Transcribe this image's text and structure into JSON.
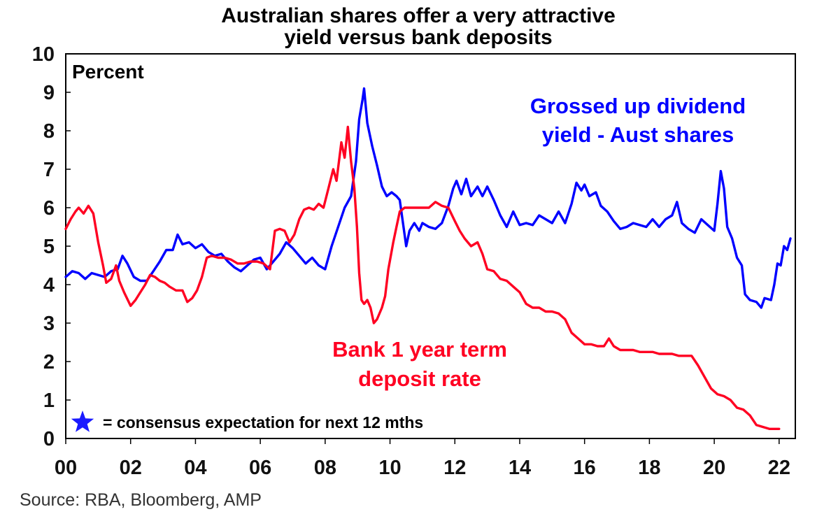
{
  "chart_data": {
    "type": "line",
    "title_lines": [
      "Australian shares offer a very attractive",
      "yield versus bank deposits"
    ],
    "unit_label": "Percent",
    "xlim": [
      2000,
      2022.5
    ],
    "ylim": [
      0,
      10
    ],
    "x_ticks": [
      2000,
      2002,
      2004,
      2006,
      2008,
      2010,
      2012,
      2014,
      2016,
      2018,
      2020,
      2022
    ],
    "x_tick_labels": [
      "00",
      "02",
      "04",
      "06",
      "08",
      "10",
      "12",
      "14",
      "16",
      "18",
      "20",
      "22"
    ],
    "y_ticks": [
      0,
      1,
      2,
      3,
      4,
      5,
      6,
      7,
      8,
      9,
      10
    ],
    "y_tick_labels": [
      "0",
      "1",
      "2",
      "3",
      "4",
      "5",
      "6",
      "7",
      "8",
      "9",
      "10"
    ],
    "grid": false,
    "series": [
      {
        "name": "Grossed up dividend yield - Aust shares",
        "color": "#0000ff",
        "points": [
          [
            2000.0,
            4.2
          ],
          [
            2000.2,
            4.35
          ],
          [
            2000.4,
            4.3
          ],
          [
            2000.6,
            4.15
          ],
          [
            2000.8,
            4.3
          ],
          [
            2001.0,
            4.25
          ],
          [
            2001.2,
            4.2
          ],
          [
            2001.4,
            4.35
          ],
          [
            2001.6,
            4.4
          ],
          [
            2001.75,
            4.75
          ],
          [
            2001.9,
            4.55
          ],
          [
            2002.1,
            4.2
          ],
          [
            2002.3,
            4.1
          ],
          [
            2002.5,
            4.1
          ],
          [
            2002.7,
            4.35
          ],
          [
            2002.9,
            4.6
          ],
          [
            2003.1,
            4.9
          ],
          [
            2003.3,
            4.9
          ],
          [
            2003.45,
            5.3
          ],
          [
            2003.6,
            5.05
          ],
          [
            2003.8,
            5.1
          ],
          [
            2004.0,
            4.95
          ],
          [
            2004.2,
            5.05
          ],
          [
            2004.4,
            4.85
          ],
          [
            2004.6,
            4.75
          ],
          [
            2004.8,
            4.8
          ],
          [
            2005.0,
            4.6
          ],
          [
            2005.2,
            4.45
          ],
          [
            2005.4,
            4.35
          ],
          [
            2005.6,
            4.5
          ],
          [
            2005.8,
            4.65
          ],
          [
            2006.0,
            4.7
          ],
          [
            2006.2,
            4.4
          ],
          [
            2006.4,
            4.6
          ],
          [
            2006.6,
            4.8
          ],
          [
            2006.8,
            5.1
          ],
          [
            2007.0,
            4.95
          ],
          [
            2007.2,
            4.75
          ],
          [
            2007.4,
            4.55
          ],
          [
            2007.6,
            4.7
          ],
          [
            2007.8,
            4.5
          ],
          [
            2008.0,
            4.4
          ],
          [
            2008.2,
            5.0
          ],
          [
            2008.4,
            5.5
          ],
          [
            2008.6,
            6.0
          ],
          [
            2008.8,
            6.3
          ],
          [
            2008.95,
            7.2
          ],
          [
            2009.05,
            8.3
          ],
          [
            2009.15,
            8.8
          ],
          [
            2009.2,
            9.1
          ],
          [
            2009.3,
            8.2
          ],
          [
            2009.45,
            7.6
          ],
          [
            2009.6,
            7.1
          ],
          [
            2009.75,
            6.55
          ],
          [
            2009.9,
            6.3
          ],
          [
            2010.05,
            6.4
          ],
          [
            2010.2,
            6.3
          ],
          [
            2010.3,
            6.2
          ],
          [
            2010.4,
            5.6
          ],
          [
            2010.5,
            5.0
          ],
          [
            2010.6,
            5.4
          ],
          [
            2010.75,
            5.6
          ],
          [
            2010.9,
            5.4
          ],
          [
            2011.0,
            5.6
          ],
          [
            2011.2,
            5.5
          ],
          [
            2011.4,
            5.45
          ],
          [
            2011.6,
            5.6
          ],
          [
            2011.8,
            6.05
          ],
          [
            2011.95,
            6.5
          ],
          [
            2012.05,
            6.7
          ],
          [
            2012.2,
            6.35
          ],
          [
            2012.35,
            6.75
          ],
          [
            2012.5,
            6.3
          ],
          [
            2012.7,
            6.55
          ],
          [
            2012.85,
            6.3
          ],
          [
            2013.0,
            6.55
          ],
          [
            2013.2,
            6.2
          ],
          [
            2013.4,
            5.8
          ],
          [
            2013.6,
            5.5
          ],
          [
            2013.8,
            5.9
          ],
          [
            2014.0,
            5.55
          ],
          [
            2014.2,
            5.6
          ],
          [
            2014.4,
            5.55
          ],
          [
            2014.6,
            5.8
          ],
          [
            2014.8,
            5.7
          ],
          [
            2015.0,
            5.6
          ],
          [
            2015.2,
            5.9
          ],
          [
            2015.4,
            5.6
          ],
          [
            2015.6,
            6.1
          ],
          [
            2015.75,
            6.65
          ],
          [
            2015.9,
            6.45
          ],
          [
            2016.0,
            6.6
          ],
          [
            2016.15,
            6.3
          ],
          [
            2016.35,
            6.4
          ],
          [
            2016.5,
            6.05
          ],
          [
            2016.7,
            5.9
          ],
          [
            2016.9,
            5.65
          ],
          [
            2017.1,
            5.45
          ],
          [
            2017.3,
            5.5
          ],
          [
            2017.5,
            5.6
          ],
          [
            2017.7,
            5.55
          ],
          [
            2017.9,
            5.5
          ],
          [
            2018.1,
            5.7
          ],
          [
            2018.3,
            5.5
          ],
          [
            2018.5,
            5.7
          ],
          [
            2018.7,
            5.8
          ],
          [
            2018.85,
            6.15
          ],
          [
            2019.0,
            5.6
          ],
          [
            2019.2,
            5.45
          ],
          [
            2019.4,
            5.35
          ],
          [
            2019.6,
            5.7
          ],
          [
            2019.8,
            5.55
          ],
          [
            2020.0,
            5.4
          ],
          [
            2020.1,
            6.1
          ],
          [
            2020.2,
            6.95
          ],
          [
            2020.3,
            6.5
          ],
          [
            2020.4,
            5.5
          ],
          [
            2020.55,
            5.2
          ],
          [
            2020.7,
            4.7
          ],
          [
            2020.85,
            4.5
          ],
          [
            2020.95,
            3.75
          ],
          [
            2021.1,
            3.6
          ],
          [
            2021.3,
            3.55
          ],
          [
            2021.45,
            3.4
          ],
          [
            2021.55,
            3.65
          ],
          [
            2021.75,
            3.6
          ],
          [
            2021.85,
            4.0
          ],
          [
            2021.95,
            4.55
          ],
          [
            2022.05,
            4.5
          ],
          [
            2022.15,
            5.0
          ],
          [
            2022.25,
            4.9
          ],
          [
            2022.35,
            5.2
          ]
        ]
      },
      {
        "name": "Bank 1 year term deposit rate",
        "color": "#ff0022",
        "points": [
          [
            2000.0,
            5.45
          ],
          [
            2000.15,
            5.7
          ],
          [
            2000.3,
            5.9
          ],
          [
            2000.4,
            6.0
          ],
          [
            2000.55,
            5.85
          ],
          [
            2000.7,
            6.05
          ],
          [
            2000.85,
            5.85
          ],
          [
            2001.0,
            5.1
          ],
          [
            2001.15,
            4.5
          ],
          [
            2001.25,
            4.05
          ],
          [
            2001.4,
            4.15
          ],
          [
            2001.55,
            4.5
          ],
          [
            2001.65,
            4.1
          ],
          [
            2001.8,
            3.8
          ],
          [
            2002.0,
            3.45
          ],
          [
            2002.15,
            3.6
          ],
          [
            2002.3,
            3.8
          ],
          [
            2002.45,
            4.0
          ],
          [
            2002.6,
            4.25
          ],
          [
            2002.75,
            4.2
          ],
          [
            2002.9,
            4.1
          ],
          [
            2003.05,
            4.05
          ],
          [
            2003.2,
            3.95
          ],
          [
            2003.4,
            3.85
          ],
          [
            2003.6,
            3.85
          ],
          [
            2003.75,
            3.55
          ],
          [
            2003.9,
            3.65
          ],
          [
            2004.05,
            3.85
          ],
          [
            2004.2,
            4.2
          ],
          [
            2004.35,
            4.7
          ],
          [
            2004.5,
            4.75
          ],
          [
            2004.7,
            4.7
          ],
          [
            2004.9,
            4.7
          ],
          [
            2005.1,
            4.65
          ],
          [
            2005.3,
            4.55
          ],
          [
            2005.5,
            4.55
          ],
          [
            2005.7,
            4.6
          ],
          [
            2005.9,
            4.6
          ],
          [
            2006.1,
            4.55
          ],
          [
            2006.3,
            4.4
          ],
          [
            2006.45,
            5.4
          ],
          [
            2006.6,
            5.45
          ],
          [
            2006.75,
            5.4
          ],
          [
            2006.9,
            5.1
          ],
          [
            2007.05,
            5.3
          ],
          [
            2007.2,
            5.7
          ],
          [
            2007.35,
            5.95
          ],
          [
            2007.5,
            6.0
          ],
          [
            2007.65,
            5.95
          ],
          [
            2007.8,
            6.1
          ],
          [
            2007.95,
            6.0
          ],
          [
            2008.1,
            6.5
          ],
          [
            2008.25,
            7.0
          ],
          [
            2008.35,
            6.7
          ],
          [
            2008.5,
            7.7
          ],
          [
            2008.6,
            7.3
          ],
          [
            2008.7,
            8.1
          ],
          [
            2008.8,
            7.2
          ],
          [
            2008.9,
            6.5
          ],
          [
            2008.98,
            5.5
          ],
          [
            2009.05,
            4.3
          ],
          [
            2009.12,
            3.6
          ],
          [
            2009.2,
            3.5
          ],
          [
            2009.3,
            3.6
          ],
          [
            2009.4,
            3.4
          ],
          [
            2009.5,
            3.0
          ],
          [
            2009.6,
            3.1
          ],
          [
            2009.75,
            3.4
          ],
          [
            2009.85,
            3.7
          ],
          [
            2009.95,
            4.4
          ],
          [
            2010.1,
            5.1
          ],
          [
            2010.2,
            5.5
          ],
          [
            2010.3,
            5.9
          ],
          [
            2010.45,
            6.0
          ],
          [
            2010.6,
            6.0
          ],
          [
            2010.8,
            6.0
          ],
          [
            2011.0,
            6.0
          ],
          [
            2011.2,
            6.0
          ],
          [
            2011.4,
            6.15
          ],
          [
            2011.6,
            6.05
          ],
          [
            2011.8,
            6.0
          ],
          [
            2012.0,
            5.65
          ],
          [
            2012.15,
            5.4
          ],
          [
            2012.3,
            5.2
          ],
          [
            2012.5,
            5.0
          ],
          [
            2012.7,
            5.1
          ],
          [
            2012.85,
            4.8
          ],
          [
            2013.0,
            4.4
          ],
          [
            2013.2,
            4.35
          ],
          [
            2013.4,
            4.15
          ],
          [
            2013.6,
            4.1
          ],
          [
            2013.8,
            3.95
          ],
          [
            2014.0,
            3.8
          ],
          [
            2014.2,
            3.5
          ],
          [
            2014.4,
            3.4
          ],
          [
            2014.6,
            3.4
          ],
          [
            2014.8,
            3.3
          ],
          [
            2015.0,
            3.3
          ],
          [
            2015.2,
            3.25
          ],
          [
            2015.4,
            3.1
          ],
          [
            2015.6,
            2.75
          ],
          [
            2015.8,
            2.6
          ],
          [
            2016.0,
            2.45
          ],
          [
            2016.2,
            2.45
          ],
          [
            2016.4,
            2.4
          ],
          [
            2016.6,
            2.4
          ],
          [
            2016.75,
            2.6
          ],
          [
            2016.9,
            2.4
          ],
          [
            2017.1,
            2.3
          ],
          [
            2017.3,
            2.3
          ],
          [
            2017.5,
            2.3
          ],
          [
            2017.7,
            2.25
          ],
          [
            2017.9,
            2.25
          ],
          [
            2018.1,
            2.25
          ],
          [
            2018.3,
            2.2
          ],
          [
            2018.5,
            2.2
          ],
          [
            2018.7,
            2.2
          ],
          [
            2018.9,
            2.15
          ],
          [
            2019.1,
            2.15
          ],
          [
            2019.3,
            2.15
          ],
          [
            2019.5,
            1.9
          ],
          [
            2019.7,
            1.6
          ],
          [
            2019.9,
            1.3
          ],
          [
            2020.1,
            1.15
          ],
          [
            2020.3,
            1.1
          ],
          [
            2020.5,
            1.0
          ],
          [
            2020.7,
            0.8
          ],
          [
            2020.9,
            0.75
          ],
          [
            2021.1,
            0.6
          ],
          [
            2021.3,
            0.35
          ],
          [
            2021.5,
            0.3
          ],
          [
            2021.7,
            0.25
          ],
          [
            2021.9,
            0.25
          ],
          [
            2022.0,
            0.25
          ]
        ]
      }
    ],
    "annotations": {
      "blue_label_lines": [
        "Grossed up dividend",
        "yield - Aust shares"
      ],
      "red_label_lines": [
        "Bank 1 year term",
        "deposit rate"
      ]
    },
    "legend_note": "= consensus expectation for next 12 mths",
    "legend_marker_color": "#1a1aff",
    "source": "Source: RBA, Bloomberg, AMP"
  }
}
